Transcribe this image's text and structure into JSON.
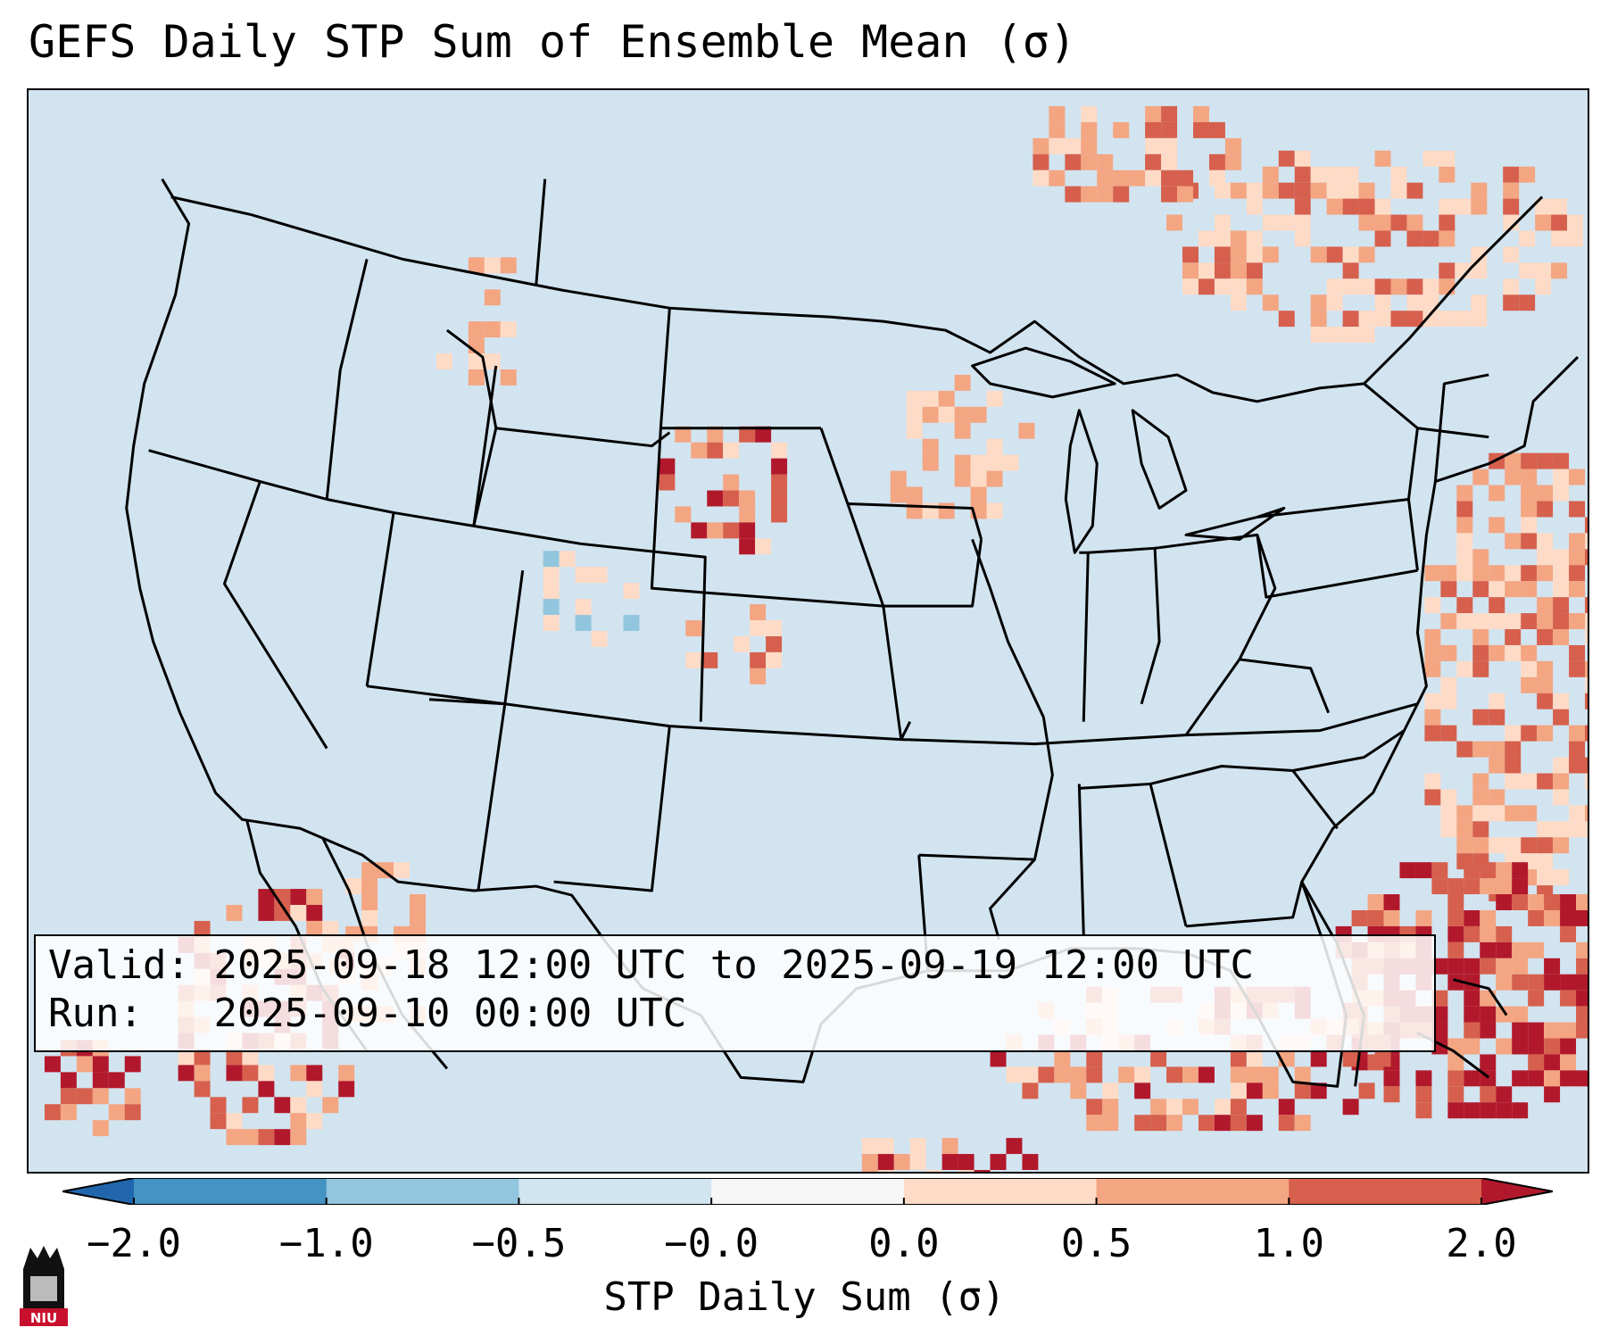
{
  "title": "GEFS Daily STP Sum of Ensemble Mean (σ)",
  "annotation": {
    "valid_label": "Valid:",
    "valid_value": "2025-09-18 12:00 UTC to 2025-09-19 12:00 UTC",
    "run_label": "Run:",
    "run_value": "2025-09-10 00:00 UTC"
  },
  "colorbar": {
    "label": "STP Daily Sum (σ)",
    "ticks": [
      "−2.0",
      "−1.0",
      "−0.5",
      "−0.0",
      "0.0",
      "0.5",
      "1.0",
      "2.0"
    ],
    "bins": [
      {
        "range": "< -2.0",
        "color": "#2166ac"
      },
      {
        "range": "-2.0 to -1.0",
        "color": "#4393c3"
      },
      {
        "range": "-1.0 to -0.5",
        "color": "#92c5de"
      },
      {
        "range": "-0.5 to -0.0",
        "color": "#d1e5f0"
      },
      {
        "range": "-0.0 to 0.0",
        "color": "#f7f7f7"
      },
      {
        "range": "0.0 to 0.5",
        "color": "#fddbc7"
      },
      {
        "range": "0.5 to 1.0",
        "color": "#f4a582"
      },
      {
        "range": "1.0 to 2.0",
        "color": "#d6604d"
      },
      {
        "range": "> 2.0",
        "color": "#b2182b"
      }
    ]
  },
  "map": {
    "region": "Contiguous United States",
    "ocean_color": "#d2e4f0",
    "background_color": "#d1e5f0"
  },
  "logo": {
    "text": "NIU",
    "name": "niu-logo"
  }
}
